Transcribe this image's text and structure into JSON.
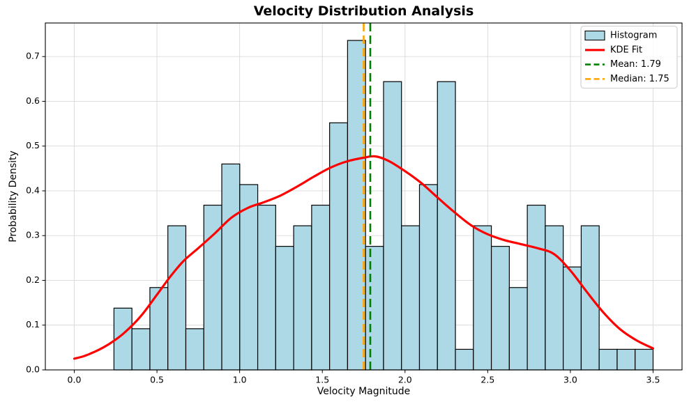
{
  "figure": {
    "title": "Velocity Distribution Analysis",
    "xlabel": "Velocity Magnitude",
    "ylabel": "Probability Density"
  },
  "chart_data": {
    "type": "histogram",
    "title": "Velocity Distribution Analysis",
    "xlabel": "Velocity Magnitude",
    "ylabel": "Probability Density",
    "xlim": [
      -0.175,
      3.675
    ],
    "ylim": [
      0,
      0.775
    ],
    "grid": true,
    "x_ticks": [
      0.0,
      0.5,
      1.0,
      1.5,
      2.0,
      2.5,
      3.0,
      3.5
    ],
    "x_tick_labels": [
      "0.0",
      "0.5",
      "1.0",
      "1.5",
      "2.0",
      "2.5",
      "3.0",
      "3.5"
    ],
    "y_ticks": [
      0.0,
      0.1,
      0.2,
      0.3,
      0.4,
      0.5,
      0.6,
      0.7
    ],
    "y_tick_labels": [
      "0.0",
      "0.1",
      "0.2",
      "0.3",
      "0.4",
      "0.5",
      "0.6",
      "0.7"
    ],
    "bins": {
      "start": 0.24,
      "width": 0.108667,
      "count": 30
    },
    "bin_counts": [
      3,
      2,
      4,
      7,
      2,
      8,
      10,
      9,
      8,
      6,
      7,
      8,
      12,
      16,
      6,
      14,
      7,
      9,
      14,
      1,
      7,
      6,
      4,
      8,
      7,
      5,
      7,
      1,
      1,
      1
    ],
    "bin_densities": [
      0.138,
      0.092,
      0.184,
      0.322,
      0.092,
      0.368,
      0.46,
      0.414,
      0.368,
      0.276,
      0.322,
      0.368,
      0.552,
      0.736,
      0.276,
      0.644,
      0.322,
      0.414,
      0.644,
      0.046,
      0.322,
      0.276,
      0.184,
      0.368,
      0.322,
      0.23,
      0.322,
      0.046,
      0.046,
      0.046
    ],
    "kde_points": [
      [
        0.0,
        0.025
      ],
      [
        0.06,
        0.031
      ],
      [
        0.12,
        0.04
      ],
      [
        0.18,
        0.051
      ],
      [
        0.24,
        0.065
      ],
      [
        0.3,
        0.082
      ],
      [
        0.36,
        0.103
      ],
      [
        0.42,
        0.128
      ],
      [
        0.5,
        0.168
      ],
      [
        0.58,
        0.208
      ],
      [
        0.66,
        0.243
      ],
      [
        0.75,
        0.272
      ],
      [
        0.85,
        0.305
      ],
      [
        0.95,
        0.34
      ],
      [
        1.05,
        0.362
      ],
      [
        1.15,
        0.375
      ],
      [
        1.25,
        0.39
      ],
      [
        1.35,
        0.41
      ],
      [
        1.45,
        0.432
      ],
      [
        1.55,
        0.452
      ],
      [
        1.65,
        0.466
      ],
      [
        1.75,
        0.474
      ],
      [
        1.82,
        0.477
      ],
      [
        1.9,
        0.467
      ],
      [
        2.0,
        0.444
      ],
      [
        2.1,
        0.417
      ],
      [
        2.2,
        0.384
      ],
      [
        2.3,
        0.352
      ],
      [
        2.4,
        0.323
      ],
      [
        2.5,
        0.303
      ],
      [
        2.6,
        0.29
      ],
      [
        2.7,
        0.281
      ],
      [
        2.8,
        0.272
      ],
      [
        2.9,
        0.259
      ],
      [
        3.0,
        0.222
      ],
      [
        3.1,
        0.174
      ],
      [
        3.2,
        0.128
      ],
      [
        3.3,
        0.091
      ],
      [
        3.4,
        0.066
      ],
      [
        3.5,
        0.048
      ]
    ],
    "mean": {
      "value": 1.79,
      "label": "Mean: 1.79"
    },
    "median": {
      "value": 1.75,
      "label": "Median: 1.75"
    },
    "legend": {
      "position": "upper right",
      "items": [
        {
          "label": "Histogram",
          "type": "patch",
          "color": "#add8e6"
        },
        {
          "label": "KDE Fit",
          "type": "line",
          "color": "#ff0000"
        },
        {
          "label": "Mean: 1.79",
          "type": "dashed",
          "color": "#008000"
        },
        {
          "label": "Median: 1.75",
          "type": "dashed",
          "color": "#ffa500"
        }
      ]
    },
    "colors": {
      "bar_fill": "#add8e6",
      "bar_edge": "#000000",
      "kde": "#ff0000",
      "mean": "#008000",
      "median": "#ffa500",
      "grid": "#d9d9d9",
      "spine": "#000000",
      "text": "#000000",
      "legend_border": "#cccccc",
      "legend_bg": "#ffffff"
    }
  }
}
